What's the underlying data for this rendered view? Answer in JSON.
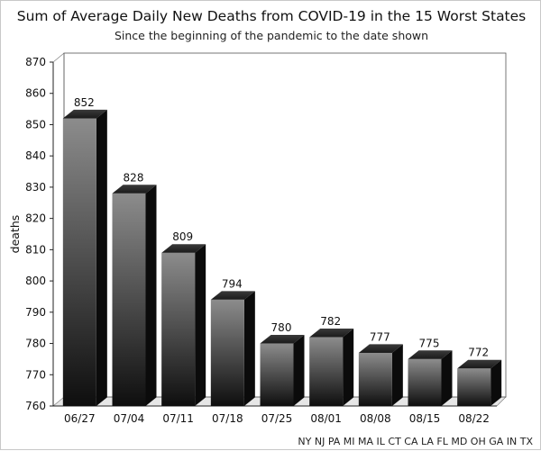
{
  "chart_data": {
    "type": "bar",
    "title": "Sum of Average Daily New Deaths from COVID-19 in the 15 Worst States",
    "subtitle": "Since the beginning of the pandemic to the date shown",
    "xlabel": "",
    "ylabel": "deaths",
    "ylim": [
      760,
      870
    ],
    "yticks": [
      760,
      770,
      780,
      790,
      800,
      810,
      820,
      830,
      840,
      850,
      860,
      870
    ],
    "categories": [
      "06/27",
      "07/04",
      "07/11",
      "07/18",
      "07/25",
      "08/01",
      "08/08",
      "08/15",
      "08/22"
    ],
    "values": [
      852,
      828,
      809,
      794,
      780,
      782,
      777,
      775,
      772
    ],
    "data_labels": [
      "852",
      "828",
      "809",
      "794",
      "780",
      "782",
      "777",
      "775",
      "772"
    ],
    "grid": false,
    "footnote": "NY NJ PA MI MA IL CT CA LA FL MD OH GA IN TX"
  }
}
